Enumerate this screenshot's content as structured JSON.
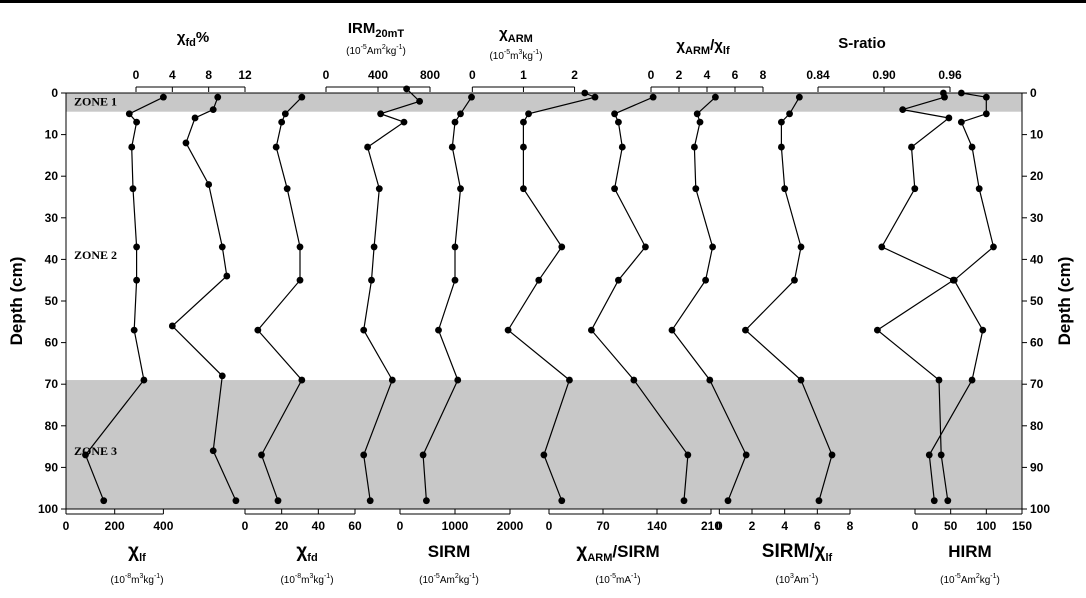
{
  "y_axis": {
    "left_label": "Depth (cm)",
    "right_label": "Depth (cm)",
    "ticks": [
      "0",
      "10",
      "20",
      "30",
      "40",
      "50",
      "60",
      "70",
      "80",
      "90",
      "100"
    ],
    "ylim": [
      0,
      100
    ],
    "inverted": true
  },
  "zones": [
    {
      "label": "ZONE 1",
      "from": 0,
      "to": 4.5,
      "shaded": true,
      "label_depth": 2
    },
    {
      "label": "ZONE 2",
      "from": 4.5,
      "to": 69,
      "shaded": false,
      "label_depth": 39
    },
    {
      "label": "ZONE 3",
      "from": 69,
      "to": 100,
      "shaded": true,
      "label_depth": 86
    }
  ],
  "shade_color": "#c8c8c8",
  "chart_data": [
    {
      "type": "line",
      "axis": "bottom",
      "title": "χlf",
      "title_main": "χ",
      "title_sub": "lf",
      "unit": "(10-8m3kg-1)",
      "unit_parts": [
        "(10",
        "-8",
        "m",
        "3",
        "kg",
        "-1",
        ")"
      ],
      "xlim": [
        0,
        460
      ],
      "ticks": [
        0,
        200,
        400
      ],
      "tick_labels": [
        "0",
        "200",
        "400"
      ],
      "depth": [
        98,
        87,
        69,
        57,
        45,
        37,
        23,
        13,
        7,
        5,
        1
      ],
      "values": [
        155,
        80,
        320,
        280,
        290,
        290,
        275,
        270,
        290,
        260,
        400
      ]
    },
    {
      "type": "line",
      "axis": "top",
      "title": "χfd%",
      "title_main": "χ",
      "title_sub": "fd",
      "title_suffix": "%",
      "xlim": [
        0,
        12
      ],
      "ticks": [
        0,
        4,
        8,
        12
      ],
      "tick_labels": [
        "0",
        "4",
        "8",
        "12"
      ],
      "depth": [
        98,
        86,
        68,
        56,
        44,
        37,
        22,
        12,
        6,
        4,
        1
      ],
      "values": [
        11,
        8.5,
        9.5,
        4,
        10,
        9.5,
        8,
        5.5,
        6.5,
        8.5,
        9
      ]
    },
    {
      "type": "line",
      "axis": "bottom",
      "title": "χfd",
      "title_main": "χ",
      "title_sub": "fd",
      "unit": "(10-8m3kg-1)",
      "unit_parts": [
        "(10",
        "-8",
        "m",
        "3",
        "kg",
        "-1",
        ")"
      ],
      "xlim": [
        0,
        60
      ],
      "ticks": [
        0,
        20,
        40,
        60
      ],
      "tick_labels": [
        "0",
        "20",
        "40",
        "60"
      ],
      "depth": [
        98,
        87,
        69,
        57,
        45,
        37,
        23,
        13,
        7,
        5,
        1
      ],
      "values": [
        18,
        9,
        31,
        7,
        30,
        30,
        23,
        17,
        20,
        22,
        31
      ]
    },
    {
      "type": "line",
      "axis": "top",
      "title": "IRM20mT",
      "title_main": "IRM",
      "title_sub": "20mT",
      "unit": "(10-5Am2kg-1)",
      "unit_parts": [
        "(10",
        "-5",
        "Am",
        "2",
        "kg",
        "-1",
        ")"
      ],
      "xlim": [
        0,
        800
      ],
      "ticks": [
        0,
        400,
        800
      ],
      "tick_labels": [
        "0",
        "400",
        "800"
      ],
      "depth": [
        98,
        87,
        69,
        57,
        45,
        37,
        23,
        13,
        7,
        5,
        2,
        -1
      ],
      "values": [
        340,
        290,
        510,
        290,
        350,
        370,
        410,
        320,
        600,
        420,
        720,
        620
      ]
    },
    {
      "type": "line",
      "axis": "bottom",
      "title": "SIRM",
      "title_main": "SIRM",
      "unit": "(10-5Am2kg-1)",
      "unit_parts": [
        "(10",
        "-5",
        "Am",
        "2",
        "kg",
        "-1",
        ")"
      ],
      "xlim": [
        0,
        2000
      ],
      "ticks": [
        0,
        1000,
        2000
      ],
      "tick_labels": [
        "0",
        "1000",
        "2000"
      ],
      "depth": [
        98,
        87,
        69,
        57,
        45,
        37,
        23,
        13,
        7,
        5,
        1
      ],
      "values": [
        480,
        420,
        1050,
        700,
        1000,
        1000,
        1100,
        950,
        1000,
        1100,
        1300
      ]
    },
    {
      "type": "line",
      "axis": "top",
      "title": "χARM",
      "title_main": "χ",
      "title_sub": "ARM",
      "unit": "(10-5m3kg-1)",
      "unit_parts": [
        "(10",
        "-5",
        "m",
        "3",
        "kg",
        "-1",
        ")"
      ],
      "xlim": [
        -0.3,
        2.4
      ],
      "ticks": [
        0,
        1,
        2
      ],
      "tick_labels": [
        "0",
        "1",
        "2"
      ],
      "depth": [
        98,
        87,
        69,
        57,
        45,
        37,
        23,
        13,
        7,
        5,
        1,
        0
      ],
      "values": [
        1.75,
        1.4,
        1.9,
        0.7,
        1.3,
        1.75,
        1,
        1,
        1,
        1.1,
        2.4,
        2.2
      ]
    },
    {
      "type": "line",
      "axis": "bottom",
      "title": "χARM/SIRM",
      "title_main": "χ",
      "title_sub": "ARM",
      "title_suffix": "/SIRM",
      "unit": "(10-5mA-1)",
      "unit_parts": [
        "(10",
        "-5",
        "mA",
        "-1",
        ")"
      ],
      "xlim": [
        0,
        210
      ],
      "ticks": [
        0,
        70,
        140,
        210
      ],
      "tick_labels": [
        "0",
        "70",
        "140",
        "210"
      ],
      "depth": [
        98,
        87,
        69,
        57,
        45,
        37,
        23,
        13,
        7,
        5,
        1
      ],
      "values": [
        175,
        180,
        110,
        55,
        90,
        125,
        85,
        95,
        90,
        85,
        135
      ]
    },
    {
      "type": "line",
      "axis": "top",
      "title": "χARM/χlf",
      "title_main": "χ",
      "title_sub": "ARM",
      "title_suffix": "/χ",
      "title_sub2": "lf",
      "xlim": [
        0,
        8
      ],
      "ticks": [
        0,
        2,
        4,
        6,
        8
      ],
      "tick_labels": [
        "0",
        "2",
        "4",
        "6",
        "8"
      ],
      "depth": [
        98,
        87,
        69,
        57,
        45,
        37,
        23,
        13,
        7,
        5,
        1
      ],
      "values": [
        5.5,
        6.8,
        4.2,
        1.5,
        3.9,
        4.4,
        3.2,
        3.1,
        3.5,
        3.3,
        4.6
      ]
    },
    {
      "type": "line",
      "axis": "bottom",
      "title": "SIRM/χlf",
      "title_main": "SIRM/χ",
      "title_sub": "lf",
      "unit": "(103Am-1)",
      "unit_parts": [
        "(10",
        "3",
        "Am",
        "-1",
        ")"
      ],
      "xlim": [
        -1,
        8
      ],
      "ticks": [
        0,
        2,
        4,
        6,
        8
      ],
      "tick_labels": [
        "0",
        "2",
        "4",
        "6",
        "8"
      ],
      "depth": [
        98,
        87,
        69,
        57,
        45,
        37,
        23,
        13,
        7,
        5,
        1
      ],
      "values": [
        6.1,
        6.9,
        5,
        1.6,
        4.6,
        5,
        4,
        3.8,
        3.8,
        4.3,
        4.9
      ]
    },
    {
      "type": "line",
      "axis": "top",
      "title": "S-ratio",
      "title_main": "S-ratio",
      "xlim": [
        0.82,
        0.98
      ],
      "ticks": [
        0.84,
        0.9,
        0.96
      ],
      "tick_labels": [
        "0.84",
        "0.90",
        "0.96"
      ],
      "depth": [
        98,
        87,
        69,
        57,
        45,
        37,
        23,
        13,
        6,
        4,
        1,
        0
      ],
      "values": [
        0.958,
        0.952,
        0.95,
        0.894,
        0.963,
        0.898,
        0.928,
        0.925,
        0.959,
        0.917,
        0.955,
        0.954
      ]
    },
    {
      "type": "line",
      "axis": "bottom",
      "title": "HIRM",
      "title_main": "HIRM",
      "unit": "(10-5Am2kg-1)",
      "unit_parts": [
        "(10",
        "-5",
        "Am",
        "2",
        "kg",
        "-1",
        ")"
      ],
      "xlim": [
        0,
        150
      ],
      "ticks": [
        0,
        50,
        100,
        150
      ],
      "tick_labels": [
        "0",
        "50",
        "100",
        "150"
      ],
      "depth": [
        98,
        87,
        69,
        57,
        45,
        37,
        23,
        13,
        7,
        5,
        1,
        0
      ],
      "values": [
        27,
        20,
        80,
        95,
        55,
        110,
        90,
        80,
        65,
        100,
        100,
        65
      ]
    }
  ]
}
